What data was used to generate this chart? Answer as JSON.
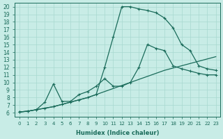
{
  "xlabel": "Humidex (Indice chaleur)",
  "background_color": "#c8ece6",
  "line_color": "#1a6b5a",
  "xlim": [
    -0.5,
    23.5
  ],
  "ylim": [
    5.5,
    20.5
  ],
  "xticks": [
    0,
    1,
    2,
    3,
    4,
    5,
    6,
    7,
    8,
    9,
    10,
    11,
    12,
    13,
    14,
    15,
    16,
    17,
    18,
    19,
    20,
    21,
    22,
    23
  ],
  "yticks": [
    6,
    7,
    8,
    9,
    10,
    11,
    12,
    13,
    14,
    15,
    16,
    17,
    18,
    19,
    20
  ],
  "line_straight_x": [
    0,
    1,
    2,
    3,
    4,
    5,
    6,
    7,
    8,
    9,
    10,
    11,
    12,
    13,
    14,
    15,
    16,
    17,
    18,
    19,
    20,
    21,
    22,
    23
  ],
  "line_straight_y": [
    6.1,
    6.2,
    6.4,
    6.6,
    6.8,
    7.1,
    7.4,
    7.7,
    8.0,
    8.4,
    8.8,
    9.2,
    9.6,
    10.0,
    10.4,
    10.8,
    11.2,
    11.6,
    11.9,
    12.2,
    12.5,
    12.8,
    13.1,
    13.4
  ],
  "line_mid_x": [
    0,
    1,
    2,
    3,
    4,
    5,
    6,
    7,
    8,
    9,
    10,
    11,
    12,
    13,
    14,
    15,
    16,
    17,
    18,
    19,
    20,
    21,
    22,
    23
  ],
  "line_mid_y": [
    6.1,
    6.2,
    6.4,
    7.4,
    9.8,
    7.5,
    7.5,
    8.4,
    8.8,
    9.5,
    10.5,
    9.5,
    9.5,
    10.0,
    12.0,
    15.0,
    14.5,
    14.2,
    12.2,
    11.8,
    11.5,
    11.2,
    11.0,
    11.0
  ],
  "line_peak_x": [
    0,
    1,
    2,
    3,
    4,
    5,
    6,
    7,
    8,
    9,
    10,
    11,
    12,
    13,
    14,
    15,
    16,
    17,
    18,
    19,
    20,
    21,
    22,
    23
  ],
  "line_peak_y": [
    6.1,
    6.2,
    6.4,
    6.6,
    6.8,
    7.1,
    7.4,
    7.7,
    8.0,
    8.4,
    12.0,
    16.0,
    20.0,
    20.0,
    19.7,
    19.5,
    19.2,
    18.5,
    17.2,
    15.0,
    14.2,
    12.2,
    11.8,
    11.6
  ]
}
